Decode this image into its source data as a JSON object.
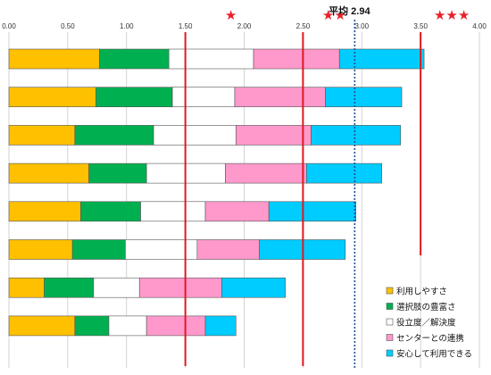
{
  "chart_data": {
    "type": "bar",
    "stacked": true,
    "orientation": "horizontal",
    "xlim": [
      0,
      4
    ],
    "xticks": [
      "0.00",
      "0.50",
      "1.00",
      "1.50",
      "2.00",
      "2.50",
      "3.00",
      "3.50",
      "4.00"
    ],
    "grid": "vertical",
    "legend_position": "bottom-right",
    "series": [
      {
        "name": "利用しやすさ",
        "color": "#ffc000",
        "values": [
          0.77,
          0.74,
          0.56,
          0.68,
          0.61,
          0.54,
          0.3,
          0.56
        ]
      },
      {
        "name": "選択肢の豊富さ",
        "color": "#00b050",
        "values": [
          0.59,
          0.65,
          0.67,
          0.49,
          0.51,
          0.45,
          0.42,
          0.29
        ]
      },
      {
        "name": "役立度／解決度",
        "color": "#ffffff",
        "values": [
          0.72,
          0.53,
          0.7,
          0.67,
          0.55,
          0.61,
          0.39,
          0.32
        ]
      },
      {
        "name": "センターとの連携",
        "color": "#ff99cc",
        "values": [
          0.73,
          0.77,
          0.64,
          0.69,
          0.54,
          0.53,
          0.7,
          0.5
        ]
      },
      {
        "name": "安心して利用できる",
        "color": "#00ccff",
        "values": [
          0.72,
          0.65,
          0.76,
          0.64,
          0.74,
          0.73,
          0.54,
          0.26
        ]
      }
    ],
    "reference_lines": [
      {
        "value": 1.5,
        "color": "#e0191e",
        "style": "solid",
        "marker": "★"
      },
      {
        "value": 2.5,
        "color": "#e0191e",
        "style": "solid",
        "marker": "★★"
      },
      {
        "value": 3.5,
        "color": "#e0191e",
        "style": "solid",
        "marker": "★★★"
      },
      {
        "value": 2.94,
        "color": "#1f4e9a",
        "style": "dotted",
        "label": "平均 2.94"
      }
    ]
  }
}
